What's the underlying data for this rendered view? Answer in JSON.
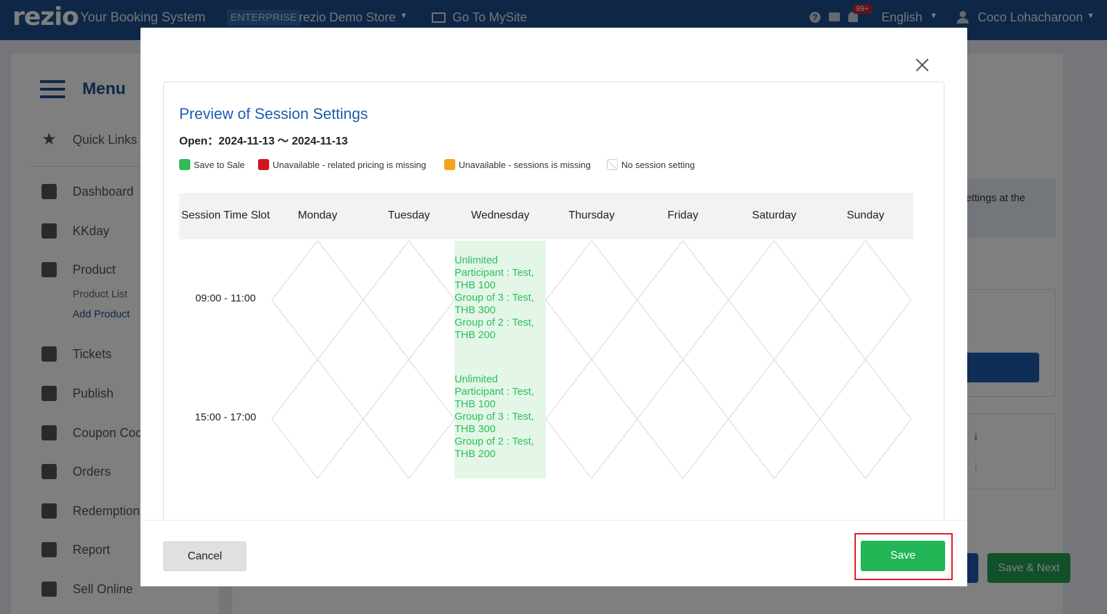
{
  "topbar": {
    "logo": "rezio",
    "app_title": "Your Booking System",
    "plan_badge": "ENTERPRISE",
    "store_name": "rezio Demo Store",
    "site_link": "Go To MySite",
    "notification_count": "99+",
    "language": "English",
    "user_name": "Coco Lohacharoon",
    "icons": [
      "help-icon",
      "chat-icon",
      "bell-icon",
      "user-icon",
      "caret-down-icon"
    ]
  },
  "sidebar": {
    "menu_title": "Menu",
    "quick_links": "Quick Links",
    "items": [
      {
        "label": "Dashboard",
        "icon": "dashboard-icon"
      },
      {
        "label": "KKday",
        "icon": "kkday-icon"
      },
      {
        "label": "Product",
        "icon": "product-icon"
      },
      {
        "label": "Tickets",
        "icon": "tickets-icon"
      },
      {
        "label": "Publish",
        "icon": "calendar-icon"
      },
      {
        "label": "Coupon Cod",
        "icon": "tag-icon"
      },
      {
        "label": "Orders",
        "icon": "document-icon"
      },
      {
        "label": "Redemption",
        "icon": "scan-icon"
      },
      {
        "label": "Report",
        "icon": "download-icon"
      },
      {
        "label": "Sell Online",
        "icon": "store-icon"
      }
    ],
    "product_sub": [
      "Product List",
      "Add Product"
    ]
  },
  "main": {
    "info_text": "n settings at the",
    "save_next_label": "Save & Next"
  },
  "modal": {
    "title": "Preview of Session Settings",
    "open_range": "Open：2024-11-13 〜 2024-11-13",
    "legend": [
      {
        "label": "Save to Sale",
        "color": "#2ebd59"
      },
      {
        "label": "Unavailable - related pricing is missing",
        "color": "#d0151e"
      },
      {
        "label": "Unavailable - sessions is missing",
        "color": "#f6a21c"
      },
      {
        "label": "No session setting",
        "color": "#ffffff"
      }
    ],
    "columns": [
      "Session Time Slot",
      "Monday",
      "Tuesday",
      "Wednesday",
      "Thursday",
      "Friday",
      "Saturday",
      "Sunday"
    ],
    "slots": [
      {
        "time": "09:00 - 11:00",
        "wednesday": [
          "Unlimited",
          "Participant : Test,",
          "THB 100",
          "Group of 3 : Test,",
          "THB 300",
          "Group of 2 : Test,",
          "THB 200"
        ]
      },
      {
        "time": "15:00 - 17:00",
        "wednesday": [
          "Unlimited",
          "Participant : Test,",
          "THB 100",
          "Group of 3 : Test,",
          "THB 300",
          "Group of 2 : Test,",
          "THB 200"
        ]
      }
    ],
    "cancel_label": "Cancel",
    "save_label": "Save"
  }
}
